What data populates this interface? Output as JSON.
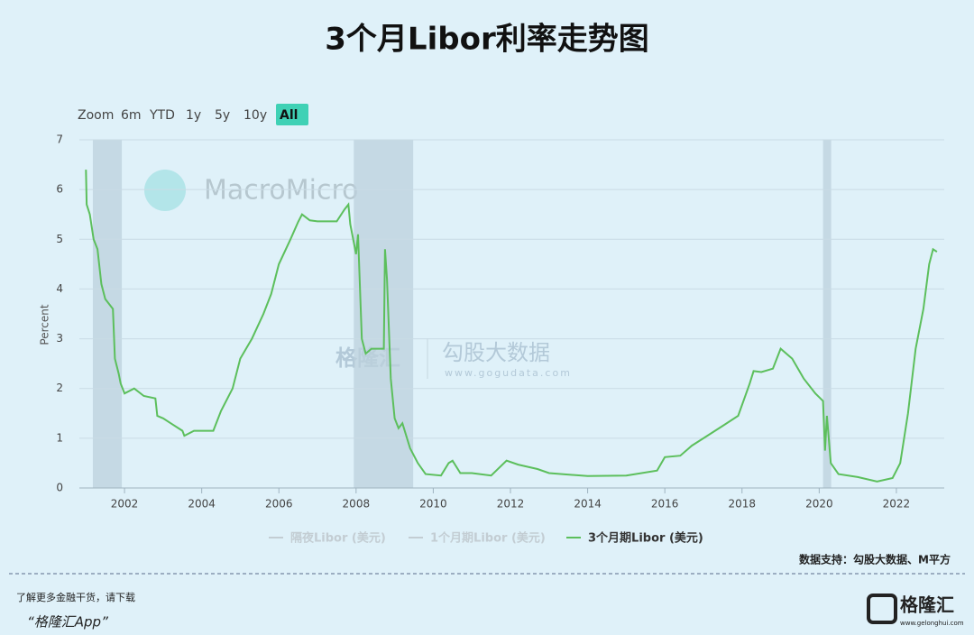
{
  "chart_data": {
    "type": "line",
    "title": "3个月Libor利率走势图",
    "y_label": "Percent",
    "range_buttons": [
      "Zoom",
      "6m",
      "YTD",
      "1y",
      "5y",
      "10y",
      "All"
    ],
    "active_button": "All",
    "series": [
      {
        "name": "3个月期Libor (美元)",
        "color": "#5cbf5c",
        "x": [
          2001.0,
          2001.02,
          2001.1,
          2001.2,
          2001.3,
          2001.4,
          2001.5,
          2001.7,
          2001.75,
          2001.85,
          2001.9,
          2002.0,
          2002.25,
          2002.5,
          2002.8,
          2002.85,
          2003.0,
          2003.2,
          2003.5,
          2003.55,
          2003.8,
          2004.0,
          2004.3,
          2004.5,
          2004.8,
          2005.0,
          2005.3,
          2005.6,
          2005.8,
          2006.0,
          2006.3,
          2006.5,
          2006.6,
          2006.8,
          2007.0,
          2007.5,
          2007.7,
          2007.8,
          2007.85,
          2007.95,
          2008.0,
          2008.05,
          2008.15,
          2008.25,
          2008.4,
          2008.6,
          2008.72,
          2008.75,
          2008.8,
          2008.9,
          2009.0,
          2009.1,
          2009.2,
          2009.4,
          2009.6,
          2009.8,
          2010.2,
          2010.4,
          2010.5,
          2010.7,
          2011.0,
          2011.5,
          2011.9,
          2012.2,
          2012.7,
          2013.0,
          2014.0,
          2015.0,
          2015.8,
          2016.0,
          2016.4,
          2016.7,
          2017.0,
          2017.5,
          2017.9,
          2018.2,
          2018.3,
          2018.5,
          2018.8,
          2019.0,
          2019.3,
          2019.6,
          2019.9,
          2020.1,
          2020.15,
          2020.2,
          2020.3,
          2020.5,
          2021.0,
          2021.5,
          2021.9,
          2022.1,
          2022.3,
          2022.5,
          2022.7,
          2022.85,
          2022.95,
          2023.05
        ],
        "values": [
          6.4,
          5.7,
          5.5,
          5.0,
          4.8,
          4.1,
          3.8,
          3.6,
          2.6,
          2.3,
          2.1,
          1.9,
          2.0,
          1.85,
          1.8,
          1.45,
          1.4,
          1.3,
          1.15,
          1.05,
          1.15,
          1.15,
          1.15,
          1.55,
          2.0,
          2.6,
          3.0,
          3.5,
          3.9,
          4.5,
          5.0,
          5.35,
          5.5,
          5.38,
          5.36,
          5.36,
          5.6,
          5.7,
          5.3,
          4.9,
          4.7,
          5.1,
          3.0,
          2.7,
          2.8,
          2.8,
          2.8,
          4.8,
          4.2,
          2.2,
          1.4,
          1.2,
          1.3,
          0.8,
          0.5,
          0.28,
          0.25,
          0.5,
          0.55,
          0.3,
          0.3,
          0.25,
          0.55,
          0.47,
          0.38,
          0.3,
          0.24,
          0.25,
          0.35,
          0.62,
          0.65,
          0.85,
          1.0,
          1.25,
          1.45,
          2.1,
          2.35,
          2.33,
          2.4,
          2.8,
          2.6,
          2.2,
          1.9,
          1.75,
          0.75,
          1.45,
          0.5,
          0.28,
          0.22,
          0.13,
          0.2,
          0.5,
          1.5,
          2.8,
          3.6,
          4.5,
          4.8,
          4.75
        ]
      }
    ],
    "hidden_series": [
      "隔夜Libor (美元)",
      "1个月期Libor (美元)"
    ],
    "shaded_ranges": [
      [
        2001.18,
        2001.93
      ],
      [
        2007.94,
        2009.48
      ],
      [
        2020.1,
        2020.31
      ]
    ],
    "xlim": [
      2000.83,
      2023.24
    ],
    "xticks": [
      2002,
      2004,
      2006,
      2008,
      2010,
      2012,
      2014,
      2016,
      2018,
      2020,
      2022
    ],
    "ylim": [
      0,
      7
    ],
    "yticks": [
      0,
      1,
      2,
      3,
      4,
      5,
      6,
      7
    ],
    "grid": true,
    "watermarks": [
      "MacroMicro",
      "格隆汇",
      "勾股大数据",
      "www.gogudata.com"
    ],
    "source": "数据支持：勾股大数据、M平方"
  },
  "footer": {
    "line1": "了解更多金融干货，请下载",
    "line2": "“格隆汇App”",
    "logo": "格隆汇",
    "logo_url": "www.gelonghui.com"
  }
}
